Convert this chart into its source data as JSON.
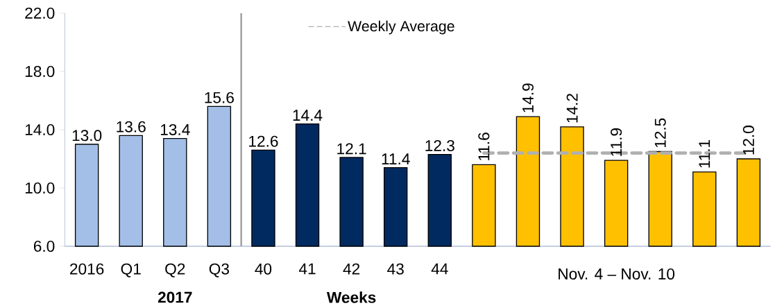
{
  "chart_data": {
    "type": "bar",
    "categories": [
      "2016",
      "Q1",
      "Q2",
      "Q3",
      "40",
      "41",
      "42",
      "43",
      "44",
      null,
      null,
      null,
      null,
      null,
      null,
      null
    ],
    "values": [
      13.0,
      13.6,
      13.4,
      15.6,
      12.6,
      14.4,
      12.1,
      11.4,
      12.3,
      11.6,
      14.9,
      14.2,
      11.9,
      12.5,
      11.1,
      12.0
    ],
    "colors": [
      "#a3bfe8",
      "#a3bfe8",
      "#a3bfe8",
      "#a3bfe8",
      "#002a60",
      "#002a60",
      "#002a60",
      "#002a60",
      "#002a60",
      "#ffc000",
      "#ffc000",
      "#ffc000",
      "#ffc000",
      "#ffc000",
      "#ffc000",
      "#ffc000"
    ],
    "ylim": [
      6,
      22
    ],
    "yticks": [
      {
        "value": 6,
        "label": "6.0"
      },
      {
        "value": 10,
        "label": "10.0"
      },
      {
        "value": 14,
        "label": "14.0"
      },
      {
        "value": 18,
        "label": "18.0"
      },
      {
        "value": 22,
        "label": "22.0"
      }
    ],
    "value_labels": [
      "13.0",
      "13.6",
      "13.4",
      "15.6",
      "12.6",
      "14.4",
      "12.1",
      "11.4",
      "12.3",
      "11.6",
      "14.9",
      "14.2",
      "11.9",
      "12.5",
      "11.1",
      "12.0"
    ],
    "grid": false,
    "legend": "top",
    "ref_lines": [
      {
        "axis": "y",
        "value": 12.4,
        "label": "Weekly Average",
        "color": "#b0b0b0",
        "line_style": "dashed"
      }
    ],
    "annotations": [
      "2017",
      "Weeks",
      "Nov. 4 – Nov. 10"
    ]
  }
}
